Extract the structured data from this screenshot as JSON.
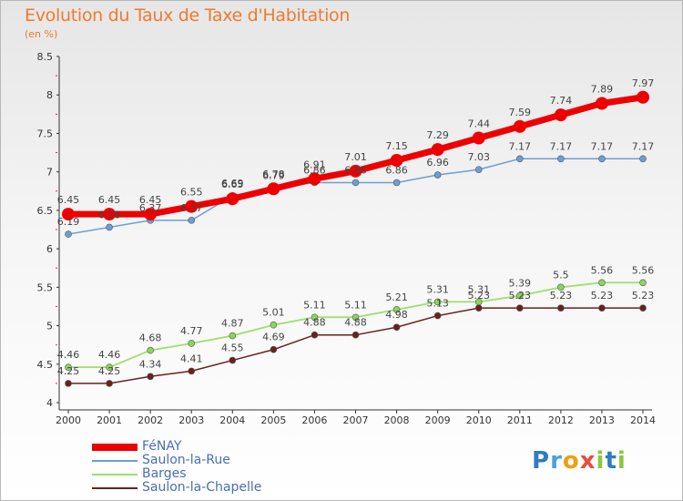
{
  "title": "Evolution du Taux de Taxe d'Habitation",
  "subtitle": "(en %)",
  "brand": {
    "letters": [
      {
        "ch": "P",
        "color": "#2e7cc4"
      },
      {
        "ch": "r",
        "color": "#4aa3df"
      },
      {
        "ch": "o",
        "color": "#f39c12"
      },
      {
        "ch": "x",
        "color": "#e74c3c"
      },
      {
        "ch": "i",
        "color": "#8cc63f"
      },
      {
        "ch": "t",
        "color": "#2e7cc4"
      },
      {
        "ch": "i",
        "color": "#8cc63f"
      }
    ]
  },
  "chart_data": {
    "type": "line",
    "x": [
      2000,
      2001,
      2002,
      2003,
      2004,
      2005,
      2006,
      2007,
      2008,
      2009,
      2010,
      2011,
      2012,
      2013,
      2014
    ],
    "ylim": [
      4,
      8.5
    ],
    "yticks": [
      4,
      4.5,
      5,
      5.5,
      6,
      6.5,
      7,
      7.5,
      8,
      8.5
    ],
    "grid": false,
    "legend_position": "bottom-left",
    "series": [
      {
        "name": "FéNAY",
        "color": "#ee0000",
        "values": [
          6.45,
          6.45,
          6.45,
          6.55,
          6.65,
          6.78,
          6.91,
          7.01,
          7.15,
          7.29,
          7.44,
          7.59,
          7.74,
          7.89,
          7.97
        ],
        "labels": [
          "6.45",
          "6.45",
          "6.45",
          "6.55",
          "6.65",
          "6.78",
          "6.91",
          "7.01",
          "7.15",
          "7.29",
          "7.44",
          "7.59",
          "7.74",
          "7.89",
          "7.97"
        ]
      },
      {
        "name": "Saulon-la-Rue",
        "color": "#6b9fd4",
        "values": [
          6.19,
          6.28,
          6.37,
          6.37,
          6.69,
          6.79,
          6.86,
          6.86,
          6.86,
          6.96,
          7.03,
          7.17,
          7.17,
          7.17,
          7.17
        ],
        "labels": [
          "6.19",
          "6.28",
          "6.37",
          "6.37",
          "6.69",
          "6.79",
          "6.86",
          "6.86",
          "6.86",
          "6.96",
          "7.03",
          "7.17",
          "7.17",
          "7.17",
          "7.17"
        ]
      },
      {
        "name": "Barges",
        "color": "#9be06a",
        "values": [
          4.46,
          4.46,
          4.68,
          4.77,
          4.87,
          5.01,
          5.11,
          5.11,
          5.21,
          5.31,
          5.31,
          5.39,
          5.5,
          5.56,
          5.56
        ],
        "labels": [
          "4.46",
          "4.46",
          "4.68",
          "4.77",
          "4.87",
          "5.01",
          "5.11",
          "5.11",
          "5.21",
          "5.31",
          "5.31",
          "5.39",
          "5.5",
          "5.56",
          "5.56"
        ]
      },
      {
        "name": "Saulon-la-Chapelle",
        "color": "#6b1f1f",
        "values": [
          4.25,
          4.25,
          4.34,
          4.41,
          4.55,
          4.69,
          4.88,
          4.88,
          4.98,
          5.13,
          5.23,
          5.23,
          5.23,
          5.23,
          5.23
        ],
        "labels": [
          "4.25",
          "4.25",
          "4.34",
          "4.41",
          "4.55",
          "4.69",
          "4.88",
          "4.88",
          "4.98",
          "5.13",
          "5.23",
          "5.23",
          "5.23",
          "5.23",
          "5.23"
        ]
      }
    ]
  }
}
